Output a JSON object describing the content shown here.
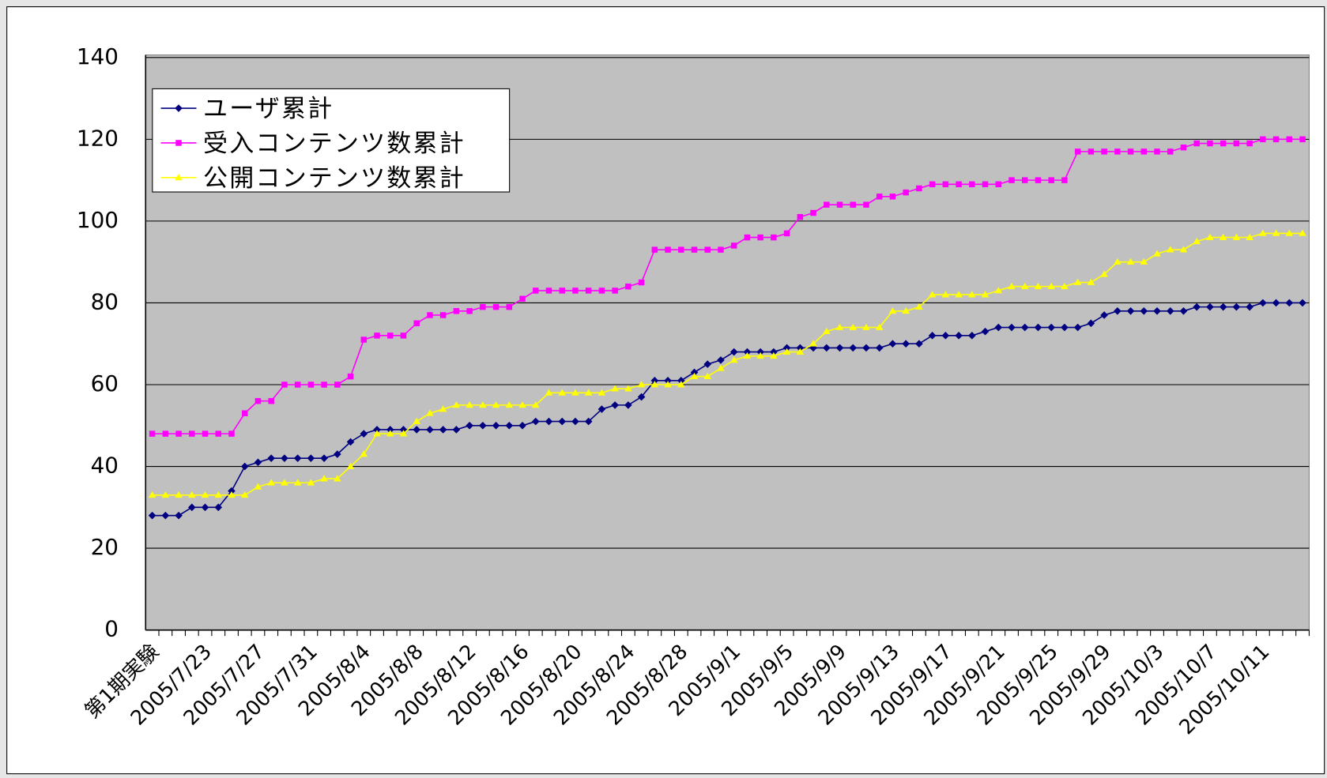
{
  "chart_data": {
    "type": "line",
    "categories": [
      "第1期実験",
      null,
      null,
      null,
      "2005/7/23",
      null,
      null,
      null,
      "2005/7/27",
      null,
      null,
      null,
      "2005/7/31",
      null,
      null,
      null,
      "2005/8/4",
      null,
      null,
      null,
      "2005/8/8",
      null,
      null,
      null,
      "2005/8/12",
      null,
      null,
      null,
      "2005/8/16",
      null,
      null,
      null,
      "2005/8/20",
      null,
      null,
      null,
      "2005/8/24",
      null,
      null,
      null,
      "2005/8/28",
      null,
      null,
      null,
      "2005/9/1",
      null,
      null,
      null,
      "2005/9/5",
      null,
      null,
      null,
      "2005/9/9",
      null,
      null,
      null,
      "2005/9/13",
      null,
      null,
      null,
      "2005/9/17",
      null,
      null,
      null,
      "2005/9/21",
      null,
      null,
      null,
      "2005/9/25",
      null,
      null,
      null,
      "2005/9/29",
      null,
      null,
      null,
      "2005/10/3",
      null,
      null,
      null,
      "2005/10/7",
      null,
      null,
      null,
      "2005/10/11",
      null,
      null,
      null
    ],
    "series": [
      {
        "name": "ユーザ累計",
        "color": "#000080",
        "marker": "diamond",
        "values": [
          28,
          28,
          28,
          30,
          30,
          30,
          34,
          40,
          41,
          42,
          42,
          42,
          42,
          42,
          43,
          46,
          48,
          49,
          49,
          49,
          49,
          49,
          49,
          49,
          50,
          50,
          50,
          50,
          50,
          51,
          51,
          51,
          51,
          51,
          54,
          55,
          55,
          57,
          61,
          61,
          61,
          63,
          65,
          66,
          68,
          68,
          68,
          68,
          69,
          69,
          69,
          69,
          69,
          69,
          69,
          69,
          70,
          70,
          70,
          72,
          72,
          72,
          72,
          73,
          74,
          74,
          74,
          74,
          74,
          74,
          74,
          75,
          77,
          78,
          78,
          78,
          78,
          78,
          78,
          79,
          79,
          79,
          79,
          79,
          80,
          80,
          80,
          80
        ]
      },
      {
        "name": "受入コンテンツ数累計",
        "color": "#ff00ff",
        "marker": "square",
        "values": [
          48,
          48,
          48,
          48,
          48,
          48,
          48,
          53,
          56,
          56,
          60,
          60,
          60,
          60,
          60,
          62,
          71,
          72,
          72,
          72,
          75,
          77,
          77,
          78,
          78,
          79,
          79,
          79,
          81,
          83,
          83,
          83,
          83,
          83,
          83,
          83,
          84,
          85,
          93,
          93,
          93,
          93,
          93,
          93,
          94,
          96,
          96,
          96,
          97,
          101,
          102,
          104,
          104,
          104,
          104,
          106,
          106,
          107,
          108,
          109,
          109,
          109,
          109,
          109,
          109,
          110,
          110,
          110,
          110,
          110,
          117,
          117,
          117,
          117,
          117,
          117,
          117,
          117,
          118,
          119,
          119,
          119,
          119,
          119,
          120,
          120,
          120,
          120
        ]
      },
      {
        "name": "公開コンテンツ数累計",
        "color": "#ffff00",
        "marker": "triangle",
        "values": [
          33,
          33,
          33,
          33,
          33,
          33,
          33,
          33,
          35,
          36,
          36,
          36,
          36,
          37,
          37,
          40,
          43,
          48,
          48,
          48,
          51,
          53,
          54,
          55,
          55,
          55,
          55,
          55,
          55,
          55,
          58,
          58,
          58,
          58,
          58,
          59,
          59,
          60,
          60,
          60,
          60,
          62,
          62,
          64,
          66,
          67,
          67,
          67,
          68,
          68,
          70,
          73,
          74,
          74,
          74,
          74,
          78,
          78,
          79,
          82,
          82,
          82,
          82,
          82,
          83,
          84,
          84,
          84,
          84,
          84,
          85,
          85,
          87,
          90,
          90,
          90,
          92,
          93,
          93,
          95,
          96,
          96,
          96,
          96,
          97,
          97,
          97,
          97
        ]
      }
    ],
    "ylim": [
      0,
      140
    ],
    "yticks": [
      0,
      20,
      40,
      60,
      80,
      100,
      120,
      140
    ],
    "grid": true,
    "legend": "upper-left",
    "plot_background": "#c0c0c0"
  }
}
